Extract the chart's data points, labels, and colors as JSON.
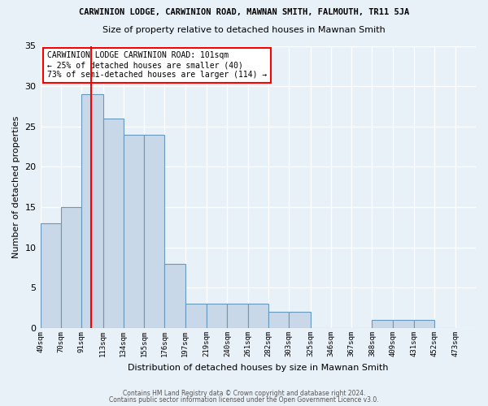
{
  "title": "CARWINION LODGE, CARWINION ROAD, MAWNAN SMITH, FALMOUTH, TR11 5JA",
  "subtitle": "Size of property relative to detached houses in Mawnan Smith",
  "xlabel": "Distribution of detached houses by size in Mawnan Smith",
  "ylabel": "Number of detached properties",
  "bin_labels": [
    "49sqm",
    "70sqm",
    "91sqm",
    "113sqm",
    "134sqm",
    "155sqm",
    "176sqm",
    "197sqm",
    "219sqm",
    "240sqm",
    "261sqm",
    "282sqm",
    "303sqm",
    "325sqm",
    "346sqm",
    "367sqm",
    "388sqm",
    "409sqm",
    "431sqm",
    "452sqm",
    "473sqm"
  ],
  "bar_values": [
    13,
    15,
    29,
    26,
    24,
    24,
    8,
    3,
    3,
    3,
    3,
    2,
    2,
    0,
    0,
    0,
    1,
    1,
    1,
    0
  ],
  "bar_color": "#c8d8e8",
  "bar_edge_color": "#6699bb",
  "ylim": [
    0,
    35
  ],
  "yticks": [
    0,
    5,
    10,
    15,
    20,
    25,
    30,
    35
  ],
  "red_line_x": 101,
  "background_color": "#e8f0f8",
  "grid_color": "#ffffff",
  "annotation_title": "CARWINION LODGE CARWINION ROAD: 101sqm",
  "annotation_line1": "← 25% of detached houses are smaller (40)",
  "annotation_line2": "73% of semi-detached houses are larger (114) →",
  "footer1": "Contains HM Land Registry data © Crown copyright and database right 2024.",
  "footer2": "Contains public sector information licensed under the Open Government Licence v3.0.",
  "bin_edges": [
    49,
    70,
    91,
    113,
    134,
    155,
    176,
    197,
    219,
    240,
    261,
    282,
    303,
    325,
    346,
    367,
    388,
    409,
    431,
    452,
    473
  ]
}
